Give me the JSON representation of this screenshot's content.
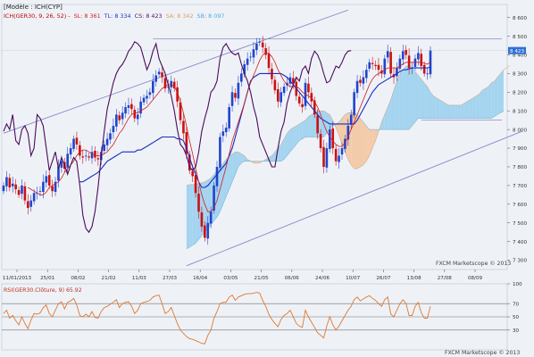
{
  "header": {
    "model": "[Modèle : ICH(CYP]",
    "legend": [
      {
        "text": "ICH(GER30, 9, 26, 52) -",
        "color": "#c00000"
      },
      {
        "text": "SL: 8 361",
        "color": "#d22222"
      },
      {
        "text": "TL: 8 334",
        "color": "#2030c8"
      },
      {
        "text": "CS: 8 423",
        "color": "#5a1060"
      },
      {
        "text": "SA: 8 342",
        "color": "#e0a060"
      },
      {
        "text": "SB: 8 097",
        "color": "#50a8e0"
      }
    ]
  },
  "price_tag": "8 423",
  "watermark_main": "FXCM Marketscope © 2013",
  "watermark_rsi": "FXCM Marketscope © 2013",
  "rsi_header": "RSI(GER30.Clôture, 9) 65.92",
  "colors": {
    "background": "#eef2f7",
    "bull": "#2244cc",
    "bear": "#cc1111",
    "tenkan": "#d21e1e",
    "kijun": "#1a2cc0",
    "chikou": "#4a0c5a",
    "cloud_bull": "#9fd2ee",
    "cloud_bear": "#f2c8a4",
    "channel": "#8888c8",
    "rsi": "#e07830",
    "price_tag": "#2d6fd6"
  },
  "chart_data": [
    {
      "type": "candlestick",
      "title": "",
      "x_tick_labels": [
        "11/01/2013",
        "25/01",
        "08/02",
        "21/02",
        "11/03",
        "27/03",
        "16/04",
        "03/05",
        "21/05",
        "06/06",
        "24/06",
        "10/07",
        "26/07",
        "13/08",
        "27/08",
        "08/09"
      ],
      "y_tick_labels": [
        "8 600",
        "8 500",
        "8 400",
        "8 300",
        "8 200",
        "8 100",
        "8 000",
        "7 900",
        "7 800",
        "7 700",
        "7 600",
        "7 500",
        "7 400",
        "7 300"
      ],
      "ylim": [
        7250,
        8670
      ],
      "close": [
        7700,
        7745,
        7690,
        7710,
        7680,
        7650,
        7700,
        7620,
        7580,
        7620,
        7660,
        7660,
        7670,
        7720,
        7750,
        7700,
        7670,
        7720,
        7800,
        7830,
        7790,
        7870,
        7900,
        7950,
        7920,
        7860,
        7850,
        7860,
        7850,
        7880,
        7850,
        7840,
        7880,
        7920,
        7950,
        7980,
        8020,
        8080,
        8050,
        8090,
        8120,
        8130,
        8110,
        8060,
        8080,
        8150,
        8170,
        8180,
        8200,
        8260,
        8290,
        8310,
        8280,
        8220,
        8230,
        8260,
        8220,
        8150,
        8050,
        7980,
        7870,
        7780,
        7750,
        7660,
        7560,
        7480,
        7420,
        7500,
        7560,
        7700,
        7800,
        7960,
        7990,
        8010,
        8120,
        8200,
        8170,
        8250,
        8300,
        8350,
        8380,
        8390,
        8430,
        8460,
        8470,
        8440,
        8400,
        8330,
        8270,
        8210,
        8150,
        8200,
        8230,
        8250,
        8280,
        8250,
        8180,
        8140,
        8120,
        8250,
        8200,
        8150,
        8080,
        7980,
        7900,
        7800,
        7900,
        8000,
        7900,
        7830,
        7860,
        7900,
        7950,
        8020,
        8080,
        8200,
        8260,
        8250,
        8280,
        8320,
        8360,
        8350,
        8340,
        8320,
        8300,
        8380,
        8420,
        8300,
        8280,
        8330,
        8380,
        8420,
        8400,
        8330,
        8330,
        8380,
        8410,
        8340,
        8300,
        8300,
        8423
      ],
      "series": [
        {
          "name": "SL",
          "values": [
            null,
            null,
            null,
            null,
            null,
            null,
            null,
            null,
            7690,
            7680,
            7670,
            7660,
            7650,
            7650,
            7665,
            7690,
            7700,
            7710,
            7720,
            7740,
            7770,
            7790,
            7810,
            7830,
            7860,
            7880,
            7890,
            7890,
            7880,
            7870,
            7860,
            7860,
            7860,
            7870,
            7880,
            7900,
            7920,
            7950,
            7980,
            8000,
            8030,
            8060,
            8080,
            8090,
            8090,
            8100,
            8110,
            8120,
            8140,
            8160,
            8180,
            8200,
            8220,
            8230,
            8240,
            8240,
            8230,
            8200,
            8150,
            8090,
            8020,
            7940,
            7870,
            7790,
            7720,
            7650,
            7600,
            7560,
            7560,
            7580,
            7620,
            7680,
            7740,
            7800,
            7870,
            7940,
            7990,
            8040,
            8090,
            8140,
            8200,
            8250,
            8290,
            8330,
            8370,
            8400,
            8410,
            8410,
            8390,
            8360,
            8320,
            8290,
            8260,
            8240,
            8230,
            8230,
            8230,
            8220,
            8200,
            8190,
            8180,
            8170,
            8150,
            8120,
            8080,
            8030,
            7990,
            7960,
            7940,
            7920,
            7910,
            7910,
            7930,
            7960,
            8000,
            8040,
            8080,
            8120,
            8160,
            8200,
            8240,
            8270,
            8290,
            8300,
            8310,
            8320,
            8330,
            8330,
            8330,
            8330,
            8340,
            8350,
            8360,
            8360,
            8360,
            8360,
            8360,
            8360,
            8355,
            8350,
            8361
          ]
        },
        {
          "name": "TL",
          "values": [
            null,
            null,
            null,
            null,
            null,
            null,
            null,
            null,
            null,
            null,
            null,
            null,
            null,
            null,
            null,
            null,
            null,
            null,
            null,
            null,
            null,
            null,
            null,
            null,
            null,
            7720,
            7720,
            7730,
            7740,
            7750,
            7760,
            7770,
            7790,
            7810,
            7830,
            7840,
            7850,
            7860,
            7870,
            7880,
            7880,
            7880,
            7880,
            7880,
            7890,
            7890,
            7900,
            7910,
            7920,
            7930,
            7940,
            7950,
            7960,
            7960,
            7960,
            7960,
            7960,
            7950,
            7950,
            7940,
            7900,
            7850,
            7800,
            7760,
            7720,
            7690,
            7690,
            7700,
            7720,
            7740,
            7760,
            7780,
            7800,
            7820,
            7860,
            7900,
            7960,
            8020,
            8080,
            8140,
            8200,
            8260,
            8280,
            8290,
            8300,
            8300,
            8300,
            8300,
            8300,
            8300,
            8300,
            8300,
            8290,
            8280,
            8260,
            8240,
            8220,
            8200,
            8180,
            8160,
            8140,
            8120,
            8100,
            8080,
            8060,
            8050,
            8040,
            8030,
            8030,
            8030,
            8030,
            8030,
            8030,
            8030,
            8030,
            8030,
            8050,
            8080,
            8110,
            8140,
            8170,
            8200,
            8220,
            8240,
            8250,
            8260,
            8270,
            8280,
            8290,
            8300,
            8310,
            8320,
            8320,
            8325,
            8330,
            8330,
            8330,
            8330,
            8330,
            8330,
            8334
          ]
        },
        {
          "name": "CS",
          "values": [
            7990,
            8030,
            8000,
            8080,
            7940,
            7920,
            8000,
            8020,
            7980,
            7860,
            7900,
            8080,
            8060,
            8020,
            7900,
            7780,
            7830,
            7880,
            7790,
            7850,
            7810,
            7760,
            7810,
            7850,
            7830,
            7700,
            7540,
            7470,
            7450,
            7480,
            7560,
            7690,
            7850,
            7990,
            8110,
            8180,
            8250,
            8300,
            8330,
            8350,
            8380,
            8420,
            8440,
            8470,
            8460,
            8440,
            8380,
            8320,
            8360,
            8420,
            8460,
            8380,
            8340,
            8300,
            8240,
            8180,
            8100,
            8000,
            7920,
            7900,
            7860,
            7800,
            7780,
            7800,
            7880,
            7990,
            8060,
            8120,
            8200,
            8220,
            8260,
            8380,
            8440,
            8460,
            8430,
            8410,
            8400,
            8410,
            8350,
            8300,
            8260,
            8200,
            8120,
            8060,
            7960,
            7920,
            7880,
            7840,
            7800,
            7800,
            7900,
            7990,
            8040,
            8140,
            8200,
            8240,
            8280,
            8260,
            8320,
            8340,
            8300,
            8380,
            8420,
            8400,
            8360,
            8300,
            8250,
            8260,
            8300,
            8340,
            8330,
            8360,
            8400,
            8420,
            8423,
            null,
            null,
            null,
            null,
            null,
            null,
            null,
            null,
            null,
            null,
            null,
            null,
            null,
            null,
            null,
            null,
            null,
            null,
            null,
            null,
            null,
            null,
            null,
            null,
            null,
            null
          ]
        },
        {
          "name": "SA",
          "values": [
            null,
            null,
            null,
            null,
            null,
            null,
            null,
            null,
            null,
            null,
            null,
            null,
            null,
            null,
            null,
            null,
            null,
            null,
            null,
            null,
            null,
            null,
            null,
            null,
            null,
            null,
            null,
            null,
            null,
            null,
            null,
            null,
            null,
            null,
            7700,
            7705,
            7705,
            7710,
            7710,
            7715,
            7720,
            7730,
            7740,
            7760,
            7780,
            7800,
            7820,
            7840,
            7860,
            7870,
            7880,
            7880,
            7870,
            7860,
            7840,
            7830,
            7820,
            7820,
            7820,
            7830,
            7840,
            7850,
            7860,
            7880,
            7900,
            7920,
            7950,
            7980,
            8000,
            8010,
            8020,
            8030,
            8040,
            8050,
            8070,
            8080,
            8090,
            8100,
            8100,
            8100,
            8090,
            8080,
            8050,
            8010,
            7970,
            7920,
            7880,
            7840,
            7810,
            7790,
            7790,
            7800,
            7810,
            7830,
            7860,
            7900,
            7940,
            7990,
            8040,
            8080,
            8120,
            8160,
            8210,
            8260,
            8300,
            8320,
            8340,
            8340,
            8330,
            8310,
            8290,
            8270,
            8250,
            8230,
            8200,
            8180,
            8170,
            8160,
            8150,
            8140,
            8130,
            8130,
            8130,
            8130,
            8130,
            8140,
            8150,
            8160,
            8170,
            8180,
            8190,
            8210,
            8220,
            8230,
            8250,
            8260,
            8280,
            8300,
            8320,
            8330,
            8342
          ]
        },
        {
          "name": "SB",
          "values": [
            null,
            null,
            null,
            null,
            null,
            null,
            null,
            null,
            null,
            null,
            null,
            null,
            null,
            null,
            null,
            null,
            null,
            null,
            null,
            null,
            null,
            null,
            null,
            null,
            null,
            null,
            null,
            null,
            null,
            null,
            null,
            null,
            null,
            null,
            7360,
            7370,
            7380,
            7390,
            7410,
            7430,
            7450,
            7470,
            7490,
            7510,
            7530,
            7560,
            7600,
            7640,
            7680,
            7720,
            7760,
            7800,
            7820,
            7830,
            7830,
            7830,
            7830,
            7830,
            7830,
            7830,
            7830,
            7830,
            7830,
            7830,
            7830,
            7830,
            7840,
            7860,
            7880,
            7900,
            7920,
            7940,
            7950,
            7960,
            7960,
            7960,
            7960,
            7960,
            7960,
            7960,
            7980,
            8000,
            8020,
            8030,
            8040,
            8060,
            8080,
            8090,
            8090,
            8090,
            8080,
            8060,
            8040,
            8020,
            8000,
            8000,
            8000,
            8000,
            8000,
            8000,
            8000,
            8000,
            8000,
            8000,
            8000,
            8000,
            8000,
            8000,
            8020,
            8040,
            8060,
            8060,
            8060,
            8060,
            8060,
            8060,
            8060,
            8060,
            8060,
            8060,
            8060,
            8060,
            8060,
            8060,
            8060,
            8060,
            8060,
            8060,
            8060,
            8060,
            8060,
            8060,
            8060,
            8060,
            8060,
            8070,
            8080,
            8090,
            8097
          ]
        }
      ],
      "annotations": [
        "8 423"
      ]
    },
    {
      "type": "line",
      "title": "RSI(GER30.Clôture, 9) 65.92",
      "y_tick_labels": [
        "100",
        "70",
        "50",
        "30"
      ],
      "ylim": [
        0,
        100
      ],
      "series": [
        {
          "name": "RSI",
          "values": [
            55,
            60,
            48,
            52,
            44,
            38,
            50,
            40,
            32,
            45,
            55,
            54,
            56,
            64,
            68,
            55,
            50,
            60,
            70,
            73,
            62,
            72,
            74,
            78,
            68,
            52,
            50,
            54,
            50,
            58,
            49,
            48,
            58,
            64,
            66,
            69,
            72,
            76,
            64,
            70,
            72,
            73,
            66,
            55,
            60,
            70,
            72,
            73,
            75,
            80,
            82,
            83,
            70,
            55,
            58,
            64,
            52,
            40,
            30,
            25,
            20,
            17,
            16,
            14,
            12,
            10,
            9,
            22,
            30,
            48,
            58,
            70,
            72,
            72,
            80,
            83,
            75,
            80,
            82,
            84,
            85,
            85,
            86,
            87,
            86,
            75,
            66,
            54,
            46,
            40,
            35,
            46,
            52,
            55,
            60,
            50,
            40,
            36,
            34,
            60,
            50,
            42,
            34,
            26,
            22,
            18,
            36,
            50,
            38,
            30,
            36,
            44,
            52,
            60,
            66,
            76,
            80,
            74,
            77,
            80,
            82,
            78,
            75,
            70,
            66,
            76,
            80,
            54,
            50,
            60,
            70,
            76,
            70,
            52,
            52,
            66,
            72,
            56,
            48,
            48,
            65.92
          ]
        }
      ],
      "hlines": [
        70,
        50,
        30
      ]
    }
  ]
}
